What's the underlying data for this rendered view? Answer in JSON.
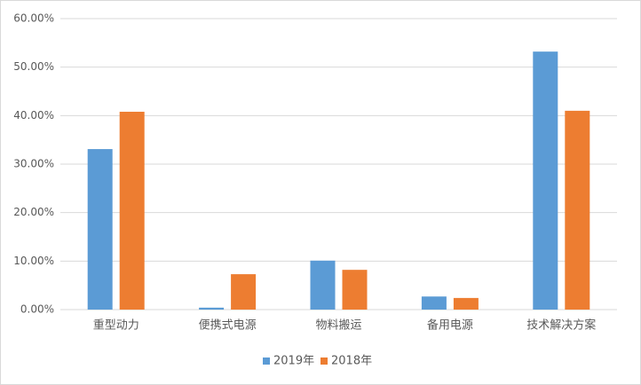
{
  "chart_data": {
    "type": "bar",
    "categories": [
      "重型动力",
      "便携式电源",
      "物料搬运",
      "备用电源",
      "技术解决方案"
    ],
    "series": [
      {
        "name": "2019年",
        "color": "#5b9bd5",
        "values": [
          33.1,
          0.4,
          10.1,
          2.7,
          53.2
        ]
      },
      {
        "name": "2018年",
        "color": "#ed7d31",
        "values": [
          40.8,
          7.3,
          8.2,
          2.4,
          41.0
        ]
      }
    ],
    "ylim": [
      0,
      60
    ],
    "yticks": [
      {
        "value": 0,
        "label": "0.00%"
      },
      {
        "value": 10,
        "label": "10.00%"
      },
      {
        "value": 20,
        "label": "20.00%"
      },
      {
        "value": 30,
        "label": "30.00%"
      },
      {
        "value": 40,
        "label": "40.00%"
      },
      {
        "value": 50,
        "label": "50.00%"
      },
      {
        "value": 60,
        "label": "60.00%"
      }
    ],
    "grid": true,
    "legend": "bottom"
  }
}
